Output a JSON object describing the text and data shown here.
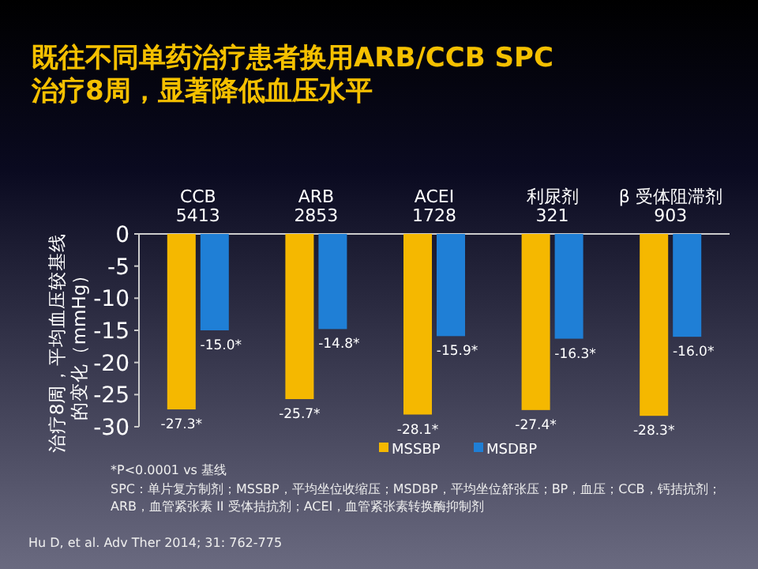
{
  "chart_data": {
    "type": "bar",
    "title": "既往不同单药治疗患者换用ARB/CCB SPC\n治疗8周，显著降低血压水平",
    "ylabel": "治疗8周，平均血压较基线的变化（mmHg）",
    "categories": [
      "CCB\n5413",
      "ARB\n2853",
      "ACEI\n1728",
      "利尿剂\n321",
      "β 受体阻滞剂\n903"
    ],
    "series": [
      {
        "name": "MSSBP",
        "color": "#f5b800",
        "values": [
          -27.3,
          -25.7,
          -28.1,
          -27.4,
          -28.3
        ],
        "value_labels": [
          "-27.3*",
          "-25.7*",
          "-28.1*",
          "-27.4*",
          "-28.3*"
        ]
      },
      {
        "name": "MSDBP",
        "color": "#1f7fd6",
        "values": [
          -15.0,
          -14.8,
          -15.9,
          -16.3,
          -16.0
        ],
        "value_labels": [
          "-15.0*",
          "-14.8*",
          "-15.9*",
          "-16.3*",
          "-16.0*"
        ]
      }
    ],
    "ylim": [
      -30,
      0
    ],
    "yticks": [
      0,
      -5,
      -10,
      -15,
      -20,
      -25,
      -30
    ],
    "grid": false,
    "legend": "bottom",
    "annotations": [
      "*P<0.0001 vs 基线",
      "SPC：单片复方制剂；MSSBP，平均坐位收缩压；MSDBP，平均坐位舒张压；BP，血压；CCB，钙拮抗剂；ARB，血管紧张素 II 受体拮抗剂；ACEI，血管紧张素转换酶抑制剂",
      "Hu D, et al. Adv Ther 2014; 31: 762-775"
    ]
  }
}
